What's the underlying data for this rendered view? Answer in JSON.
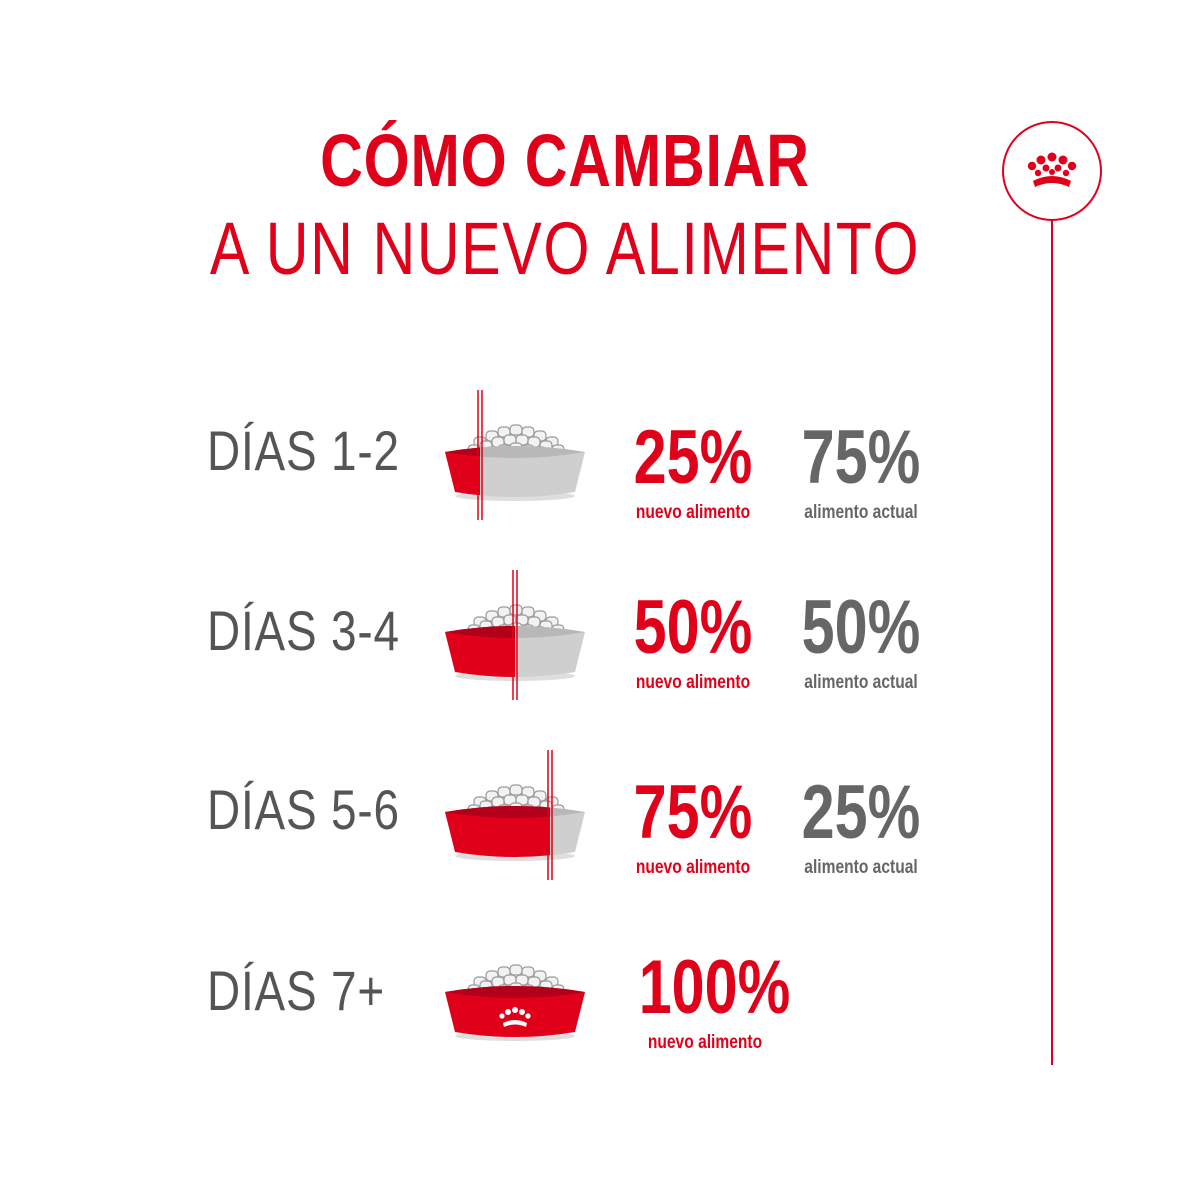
{
  "title": {
    "line1": "CÓMO CAMBIAR",
    "line2": "A UN NUEVO ALIMENTO"
  },
  "brand": {
    "icon": "royal-canin-crown-icon",
    "color": "#e1001a"
  },
  "rows": [
    {
      "days": "DÍAS 1-2",
      "new_pct": "25%",
      "new_label": "nuevo alimento",
      "cur_pct": "75%",
      "cur_label": "alimento actual",
      "new_fraction": 0.25
    },
    {
      "days": "DÍAS 3-4",
      "new_pct": "50%",
      "new_label": "nuevo alimento",
      "cur_pct": "50%",
      "cur_label": "alimento actual",
      "new_fraction": 0.5
    },
    {
      "days": "DÍAS 5-6",
      "new_pct": "75%",
      "new_label": "nuevo alimento",
      "cur_pct": "25%",
      "cur_label": "alimento actual",
      "new_fraction": 0.75
    },
    {
      "days": "DÍAS 7+",
      "new_pct": "100%",
      "new_label": "nuevo alimento",
      "new_fraction": 1.0
    }
  ],
  "colors": {
    "red": "#e1001a",
    "grey_text": "#555555",
    "grey_bowl": "#cfcfcf"
  }
}
